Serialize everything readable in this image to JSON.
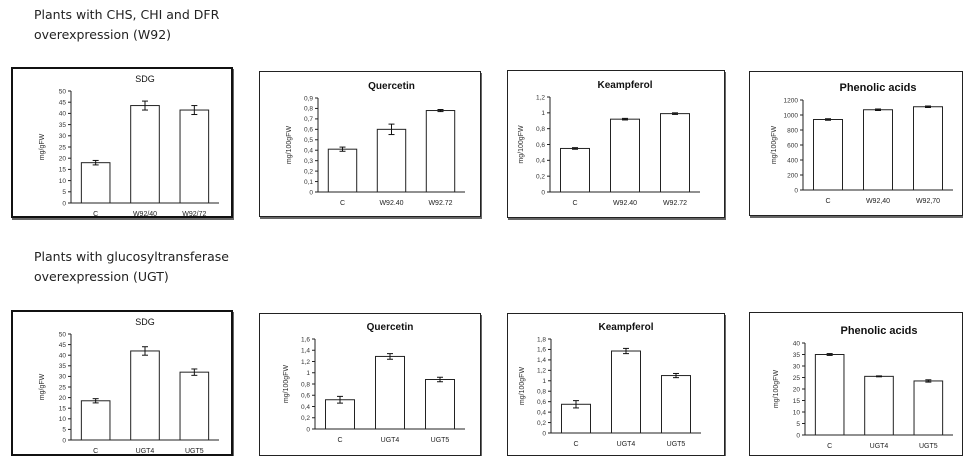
{
  "sections": [
    {
      "title": "Plants with CHS, CHI and DFR\noverexpression (W92)"
    },
    {
      "title": "Plants with glucosyltransferase\noverexpression (UGT)"
    }
  ],
  "chart_data": [
    {
      "type": "bar",
      "title": "SDG",
      "ylabel": "mg/gFW",
      "categories": [
        "C",
        "W92/40",
        "W92/72"
      ],
      "values": [
        18,
        43.5,
        41.5
      ],
      "errors": [
        1,
        2,
        2
      ],
      "ylim": [
        0,
        50
      ],
      "yticks": [
        "0",
        "5",
        "10",
        "15",
        "20",
        "25",
        "30",
        "35",
        "40",
        "45",
        "50"
      ],
      "grid": false
    },
    {
      "type": "bar",
      "title": "Quercetin",
      "ylabel": "mg/100gFW",
      "categories": [
        "C",
        "W92.40",
        "W92.72"
      ],
      "values": [
        0.41,
        0.6,
        0.78
      ],
      "errors": [
        0.02,
        0.05,
        0.01
      ],
      "ylim": [
        0,
        0.9
      ],
      "yticks": [
        "0",
        "0,1",
        "0,2",
        "0,3",
        "0,4",
        "0,5",
        "0,6",
        "0,7",
        "0,8",
        "0,9"
      ],
      "grid": false
    },
    {
      "type": "bar",
      "title": "Keampferol",
      "ylabel": "mg/100gFW",
      "categories": [
        "C",
        "W92.40",
        "W92.72"
      ],
      "values": [
        0.55,
        0.92,
        0.99
      ],
      "errors": [
        0.01,
        0.01,
        0.01
      ],
      "ylim": [
        0,
        1.2
      ],
      "yticks": [
        "0",
        "0,2",
        "0,4",
        "0,6",
        "0,8",
        "1",
        "1,2"
      ],
      "grid": false
    },
    {
      "type": "bar",
      "title": "Phenolic acids",
      "ylabel": "mg/100gFW",
      "categories": [
        "C",
        "W92,40",
        "W92,70"
      ],
      "values": [
        940,
        1070,
        1110
      ],
      "errors": [
        10,
        10,
        10
      ],
      "ylim": [
        0,
        1200
      ],
      "yticks": [
        "0",
        "200",
        "400",
        "600",
        "800",
        "1000",
        "1200"
      ],
      "grid": false
    },
    {
      "type": "bar",
      "title": "SDG",
      "ylabel": "mg/gFW",
      "categories": [
        "C",
        "UGT4",
        "UGT5"
      ],
      "values": [
        18.5,
        42,
        32
      ],
      "errors": [
        1,
        2,
        1.5
      ],
      "ylim": [
        0,
        50
      ],
      "yticks": [
        "0",
        "5",
        "10",
        "15",
        "20",
        "25",
        "30",
        "35",
        "40",
        "45",
        "50"
      ],
      "grid": false
    },
    {
      "type": "bar",
      "title": "Quercetin",
      "ylabel": "mg/100gFW",
      "categories": [
        "C",
        "UGT4",
        "UGT5"
      ],
      "values": [
        0.52,
        1.29,
        0.88
      ],
      "errors": [
        0.06,
        0.05,
        0.04
      ],
      "ylim": [
        0,
        1.6
      ],
      "yticks": [
        "0",
        "0,2",
        "0,4",
        "0,6",
        "0,8",
        "1",
        "1,2",
        "1,4",
        "1,6"
      ],
      "grid": false
    },
    {
      "type": "bar",
      "title": "Keampferol",
      "ylabel": "mg/100gFW",
      "categories": [
        "C",
        "UGT4",
        "UGT5"
      ],
      "values": [
        0.55,
        1.57,
        1.1
      ],
      "errors": [
        0.07,
        0.05,
        0.04
      ],
      "ylim": [
        0,
        1.8
      ],
      "yticks": [
        "0",
        "0,2",
        "0,4",
        "0,6",
        "0,8",
        "1",
        "1,2",
        "1,4",
        "1,6",
        "1,8"
      ],
      "grid": false
    },
    {
      "type": "bar",
      "title": "Phenolic acids",
      "ylabel": "mg/100gFW",
      "categories": [
        "C",
        "UGT4",
        "UGT5"
      ],
      "values": [
        35,
        25.5,
        23.5
      ],
      "errors": [
        0.4,
        0.2,
        0.5
      ],
      "ylim": [
        0,
        40
      ],
      "yticks": [
        "0",
        "5",
        "10",
        "15",
        "20",
        "25",
        "30",
        "35",
        "40"
      ],
      "grid": false
    }
  ]
}
